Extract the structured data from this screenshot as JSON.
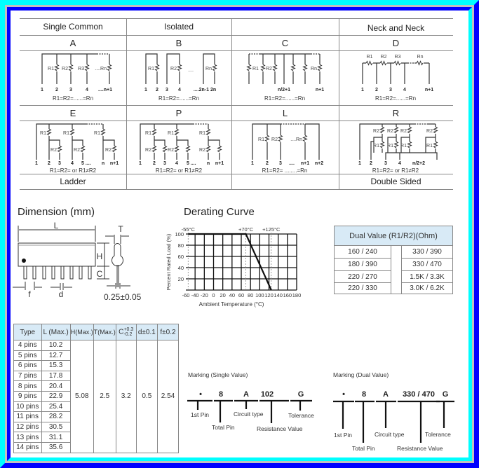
{
  "circuit_table": {
    "headers": [
      "Single Common",
      "Isolated",
      "",
      "Neck and Neck"
    ],
    "footers": [
      "Ladder",
      "",
      "",
      "Double Sided"
    ],
    "circuits": {
      "A": {
        "letter": "A",
        "resistors": [
          "R1",
          "R2",
          "R3",
          "....Rn"
        ],
        "pins": [
          "1",
          "2",
          "3",
          "4",
          "....n+1"
        ],
        "formula": "R1=R2=......=Rn"
      },
      "B": {
        "letter": "B",
        "resistors": [
          "R1",
          "R2",
          "....",
          "Rn"
        ],
        "pins": [
          "1",
          "2",
          "3",
          "4",
          "....2n-1 2n"
        ],
        "formula": "R1=R2=......=Rn"
      },
      "C": {
        "letter": "C",
        "resistors": [
          "R1",
          "R2",
          "Rn"
        ],
        "pins": [
          "n/2+1",
          "n+1"
        ],
        "formula": "R1=R2=......=Rn"
      },
      "D": {
        "letter": "D",
        "resistors": [
          "R1",
          "R2",
          "R3",
          "Rn"
        ],
        "pins": [
          "1",
          "2",
          "3",
          "4",
          "n+1"
        ],
        "formula": "R1=R2=......=Rn"
      },
      "E": {
        "letter": "E",
        "resistors": [
          "R1",
          "R1",
          "R1",
          "R2",
          "R2",
          "R2"
        ],
        "pins": [
          "1",
          "2",
          "3",
          "4",
          "5 ....",
          "n",
          "n+1"
        ],
        "formula": "R1=R2= or R1≠R2"
      },
      "P": {
        "letter": "P",
        "resistors": [
          "R1",
          "R1",
          "R1",
          "R2",
          "R2",
          "R2"
        ],
        "pins": [
          "1",
          "2",
          "3",
          "4",
          "5 ....",
          "n",
          "n+1"
        ],
        "formula": "R1=R2= or R1≠R2"
      },
      "L": {
        "letter": "L",
        "resistors": [
          "R1",
          "R2",
          "....Rn"
        ],
        "pins": [
          "1",
          "2",
          "3",
          "....",
          "n+1",
          "n+2"
        ],
        "formula": "R1=R2= ........=Rn"
      },
      "R": {
        "letter": "R",
        "resistors": [
          "R2",
          "R2",
          "R2",
          "R2",
          "R1",
          "R1",
          "R1",
          "R1"
        ],
        "pins": [
          "1",
          "2",
          "3",
          "4",
          "n/2+2"
        ],
        "formula": "R1=R2= or R1≠R2"
      }
    }
  },
  "dimension": {
    "title": "Dimension (mm)",
    "labels": {
      "L": "L",
      "T": "T",
      "H": "H",
      "C": "C",
      "f": "f",
      "d": "d",
      "lead": "0.25±0.05"
    }
  },
  "derating": {
    "title": "Derating Curve"
  },
  "chart_data": {
    "type": "line",
    "title": "Derating Curve",
    "xlabel": "Ambient Temperature (°C)",
    "ylabel": "Percent Rated Load (%)",
    "xlim": [
      -60,
      180
    ],
    "ylim": [
      0,
      100
    ],
    "x_ticks": [
      "-60",
      "-40",
      "-20",
      "0",
      "20",
      "40",
      "60",
      "80",
      "100",
      "120",
      "140",
      "160",
      "180"
    ],
    "y_ticks": [
      "20",
      "40",
      "60",
      "80",
      "100"
    ],
    "grid": true,
    "series": [
      {
        "x": [
          -55,
          70,
          125
        ],
        "y": [
          100,
          100,
          0
        ]
      }
    ],
    "annotations": [
      {
        "x": -55,
        "text": "-55°C"
      },
      {
        "x": 70,
        "text": "+70°C"
      },
      {
        "x": 125,
        "text": "+125°C"
      }
    ]
  },
  "dual_value": {
    "header": "Dual Value (R1/R2)(Ohm)",
    "rows": [
      [
        "160 / 240",
        "330 / 390"
      ],
      [
        "180 / 390",
        "330 / 470"
      ],
      [
        "220 / 270",
        "1.5K / 3.3K"
      ],
      [
        "220 / 330",
        "3.0K / 6.2K"
      ]
    ]
  },
  "dim_table": {
    "headers": [
      "Type",
      "L (Max.)",
      "H(Max.)",
      "T(Max.)",
      "C",
      "d±0.1",
      "f±0.2"
    ],
    "c_tol_plus": "+0.3",
    "c_tol_minus": "-0.2",
    "rows": [
      [
        "4 pins",
        "10.2"
      ],
      [
        "5 pins",
        "12.7"
      ],
      [
        "6 pins",
        "15.3"
      ],
      [
        "7 pins",
        "17.8"
      ],
      [
        "8 pins",
        "20.4"
      ],
      [
        "9 pins",
        "22.9"
      ],
      [
        "10 pins",
        "25.4"
      ],
      [
        "11 pins",
        "28.2"
      ],
      [
        "12 pins",
        "30.5"
      ],
      [
        "13 pins",
        "31.1"
      ],
      [
        "14 pins",
        "35.6"
      ]
    ],
    "common": {
      "H": "5.08",
      "T": "2.5",
      "C": "3.2",
      "d": "0.5",
      "f": "2.54"
    }
  },
  "marking_single": {
    "title": "Marking (Single Value)",
    "tokens": [
      "•",
      "8",
      "A",
      "102",
      "G"
    ],
    "labels": {
      "first_pin": "1st Pin",
      "total_pin": "Total Pin",
      "circuit_type": "Circuit type",
      "resistance": "Resistance Value",
      "tolerance": "Tolerance"
    }
  },
  "marking_dual": {
    "title": "Marking (Dual Value)",
    "tokens": [
      "•",
      "8",
      "A",
      "330 / 470",
      "G"
    ],
    "labels": {
      "first_pin": "1st Pin",
      "total_pin": "Total Pin",
      "circuit_type": "Circuit type",
      "resistance": "Resistance Value",
      "tolerance": "Tolerance"
    }
  },
  "colors": {
    "frame_light": "#00ffff",
    "frame_dark": "#0000ff",
    "frame_mid": "#c0c0c0",
    "table_header": "#d8eaf6"
  }
}
